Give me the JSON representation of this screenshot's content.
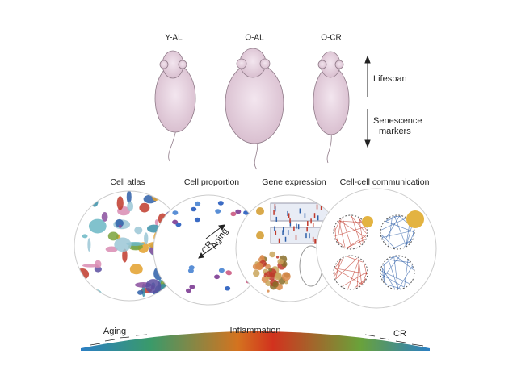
{
  "mice": [
    {
      "label": "Y-AL"
    },
    {
      "label": "O-AL"
    },
    {
      "label": "O-CR"
    }
  ],
  "arrow_labels": {
    "top": "Lifespan",
    "bottom": [
      "Senescence",
      "markers"
    ]
  },
  "panels": [
    {
      "title": "Cell atlas"
    },
    {
      "title": "Cell proportion"
    },
    {
      "title": "Gene expression"
    },
    {
      "title": "Cell-cell communication"
    }
  ],
  "cell_proportion_labels": {
    "up": "Aging",
    "down": "CR"
  },
  "gradient": {
    "left": "Aging",
    "center": "Inflammation",
    "right": "CR"
  }
}
